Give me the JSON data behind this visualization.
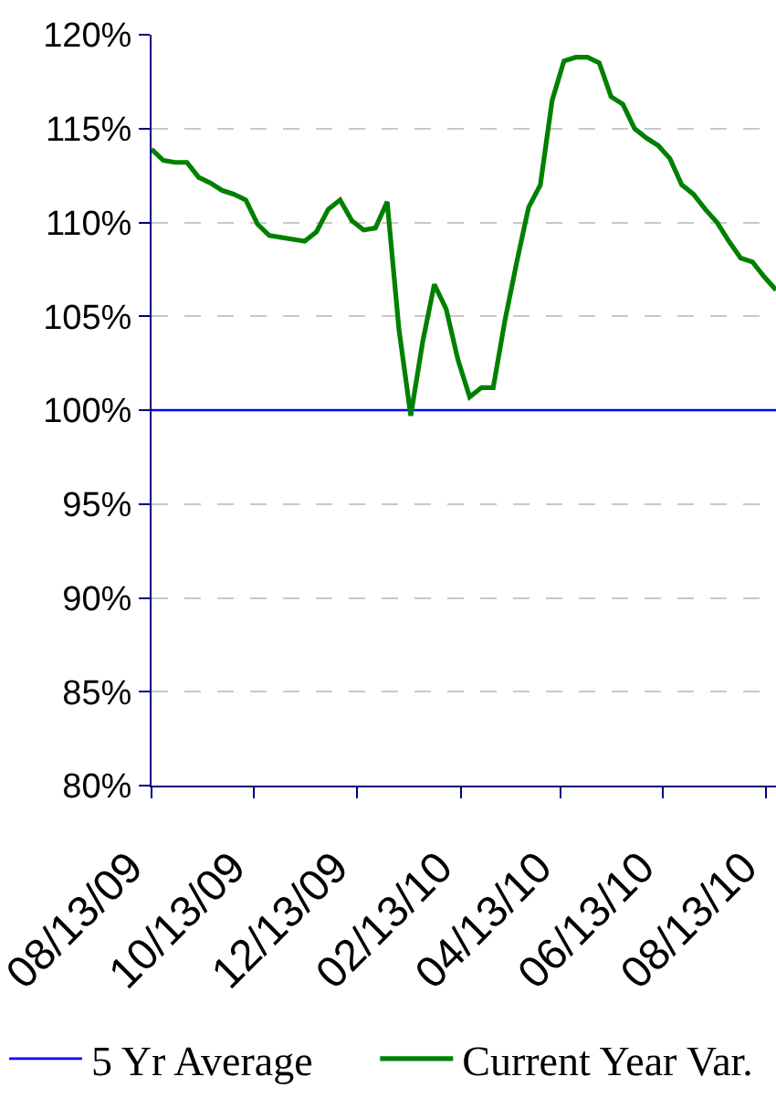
{
  "chart_data": {
    "type": "line",
    "x": [
      "2009-08-13",
      "2009-08-20",
      "2009-08-27",
      "2009-09-03",
      "2009-09-10",
      "2009-09-17",
      "2009-09-24",
      "2009-10-01",
      "2009-10-08",
      "2009-10-15",
      "2009-10-22",
      "2009-10-29",
      "2009-11-05",
      "2009-11-12",
      "2009-11-19",
      "2009-11-26",
      "2009-12-03",
      "2009-12-10",
      "2009-12-17",
      "2009-12-24",
      "2009-12-31",
      "2010-01-07",
      "2010-01-14",
      "2010-01-21",
      "2010-01-28",
      "2010-02-04",
      "2010-02-11",
      "2010-02-18",
      "2010-02-25",
      "2010-03-04",
      "2010-03-11",
      "2010-03-18",
      "2010-03-25",
      "2010-04-01",
      "2010-04-08",
      "2010-04-15",
      "2010-04-22",
      "2010-04-29",
      "2010-05-06",
      "2010-05-13",
      "2010-05-20",
      "2010-05-27",
      "2010-06-03",
      "2010-06-10",
      "2010-06-17",
      "2010-06-24",
      "2010-07-01",
      "2010-07-08",
      "2010-07-15",
      "2010-07-22",
      "2010-07-29",
      "2010-08-05",
      "2010-08-12",
      "2010-08-19"
    ],
    "series": [
      {
        "name": "5 Yr Average",
        "color": "#0000ff",
        "x": [
          "2009-08-13",
          "2010-08-19"
        ],
        "values": [
          100,
          100
        ]
      },
      {
        "name": "Current Year Var.",
        "color": "#008000",
        "values": [
          113.9,
          113.3,
          113.2,
          113.2,
          112.4,
          112.1,
          111.7,
          111.5,
          111.2,
          109.9,
          109.3,
          109.2,
          109.1,
          109.0,
          109.5,
          110.7,
          111.2,
          110.1,
          109.6,
          109.7,
          111.1,
          104.3,
          99.7,
          103.6,
          106.7,
          105.4,
          102.7,
          100.7,
          101.2,
          101.2,
          104.8,
          107.9,
          110.8,
          112.0,
          116.5,
          118.6,
          118.8,
          118.8,
          118.5,
          116.7,
          116.3,
          115.0,
          114.5,
          114.1,
          113.4,
          112.0,
          111.5,
          110.7,
          110.0,
          109.0,
          108.1,
          107.9,
          107.1,
          106.4
        ]
      }
    ],
    "xlim": [
      "2009-08-13",
      "2010-08-19"
    ],
    "xticks": [
      {
        "value": "2009-08-13",
        "label": "08/13/09"
      },
      {
        "value": "2009-10-13",
        "label": "10/13/09"
      },
      {
        "value": "2009-12-13",
        "label": "12/13/09"
      },
      {
        "value": "2010-02-13",
        "label": "02/13/10"
      },
      {
        "value": "2010-04-13",
        "label": "04/13/10"
      },
      {
        "value": "2010-06-13",
        "label": "06/13/10"
      },
      {
        "value": "2010-08-13",
        "label": "08/13/10"
      }
    ],
    "ylim": [
      80,
      120
    ],
    "yticks": [
      {
        "value": 80,
        "label": "80%"
      },
      {
        "value": 85,
        "label": "85%"
      },
      {
        "value": 90,
        "label": "90%"
      },
      {
        "value": 95,
        "label": "95%"
      },
      {
        "value": 100,
        "label": "100%"
      },
      {
        "value": 105,
        "label": "105%"
      },
      {
        "value": 110,
        "label": "110%"
      },
      {
        "value": 115,
        "label": "115%"
      },
      {
        "value": 120,
        "label": "120%"
      }
    ],
    "grid": "y",
    "legend": "bottom",
    "marker": "none",
    "line_style": "solid"
  }
}
